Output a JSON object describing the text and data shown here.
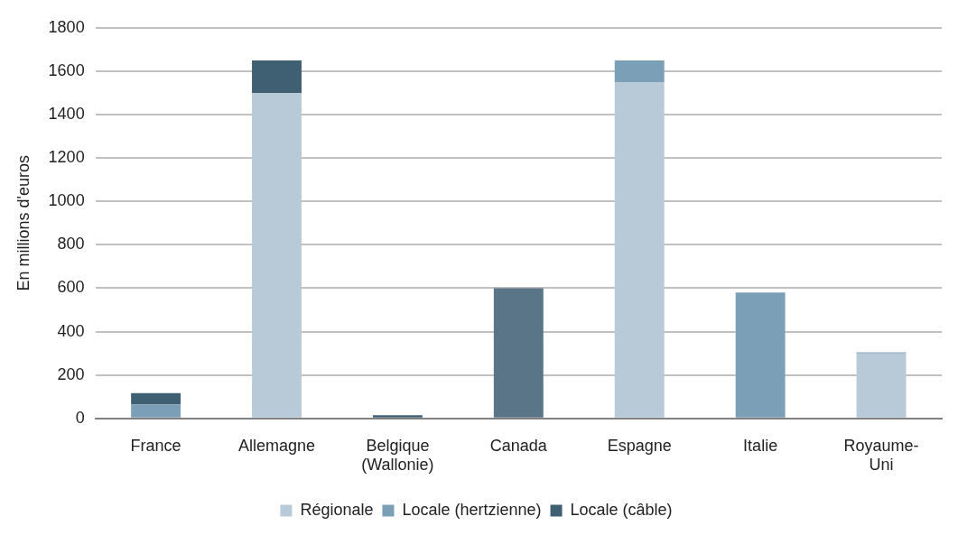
{
  "chart_data": {
    "type": "bar",
    "stacked": true,
    "ylabel": "En millions d'euros",
    "categories": [
      "France",
      "Allemagne",
      "Belgique (Wallonie)",
      "Canada",
      "Espagne",
      "Italie",
      "Royaume-Uni"
    ],
    "series": [
      {
        "name": "Régionale",
        "color": "#b8cad8",
        "values": [
          null,
          1500,
          null,
          null,
          1550,
          null,
          300
        ]
      },
      {
        "name": "Locale (hertzienne)",
        "color": "#7b9fb7",
        "values": [
          65,
          null,
          null,
          null,
          100,
          580,
          5
        ]
      },
      {
        "name": "Locale (câble)",
        "color": "#3f5f73",
        "values": [
          52,
          150,
          15,
          null,
          null,
          null,
          null
        ]
      },
      {
        "color": "#5a7587",
        "values": [
          null,
          null,
          null,
          600,
          null,
          null,
          null
        ]
      }
    ],
    "ylim": [
      0,
      1800
    ],
    "yticks": [
      0,
      200,
      400,
      600,
      800,
      1000,
      1200,
      1400,
      1600,
      1800
    ],
    "grid": "y",
    "legend": "bottom"
  }
}
